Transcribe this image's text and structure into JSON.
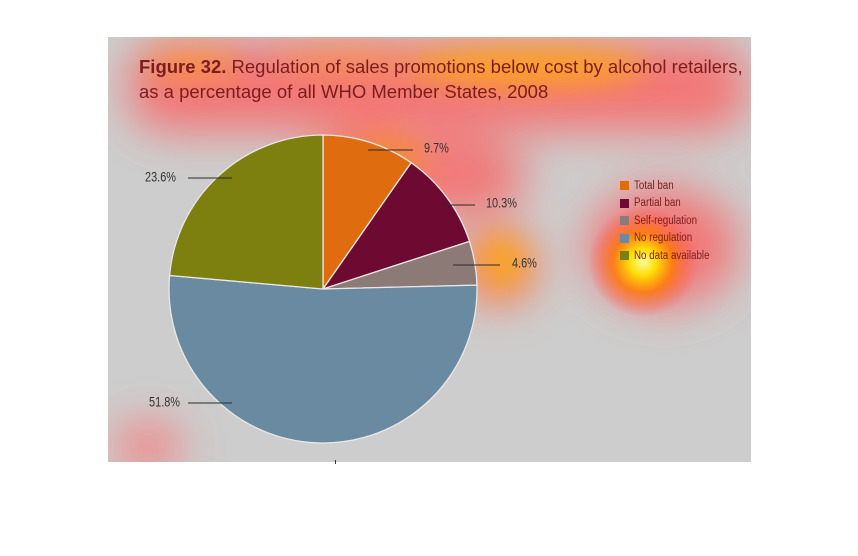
{
  "title": {
    "figure_label": "Figure 32.",
    "text": " Regulation of sales promotions below cost by alcohol retailers, as a percentage of all WHO Member States, 2008"
  },
  "colors": {
    "panel_bg": "#cdcdcd",
    "title_text": "#7d1c1f",
    "slice_border": "#e8e8e8"
  },
  "chart_data": {
    "type": "pie",
    "title": "Regulation of sales promotions below cost by alcohol retailers, as a percentage of all WHO Member States, 2008",
    "slices": [
      {
        "name": "Total ban",
        "value": 9.7,
        "label": "9.7%",
        "color": "#e06c10"
      },
      {
        "name": "Partial ban",
        "value": 10.3,
        "label": "10.3%",
        "color": "#6e0a32"
      },
      {
        "name": "Self-regulation",
        "value": 4.6,
        "label": "4.6%",
        "color": "#8c7a76"
      },
      {
        "name": "No regulation",
        "value": 51.8,
        "label": "51.8%",
        "color": "#6a8aa2"
      },
      {
        "name": "No data available",
        "value": 23.6,
        "label": "23.6%",
        "color": "#7d7f0e"
      }
    ],
    "legend_position": "right",
    "start_angle": "12 o'clock",
    "direction": "clockwise"
  }
}
